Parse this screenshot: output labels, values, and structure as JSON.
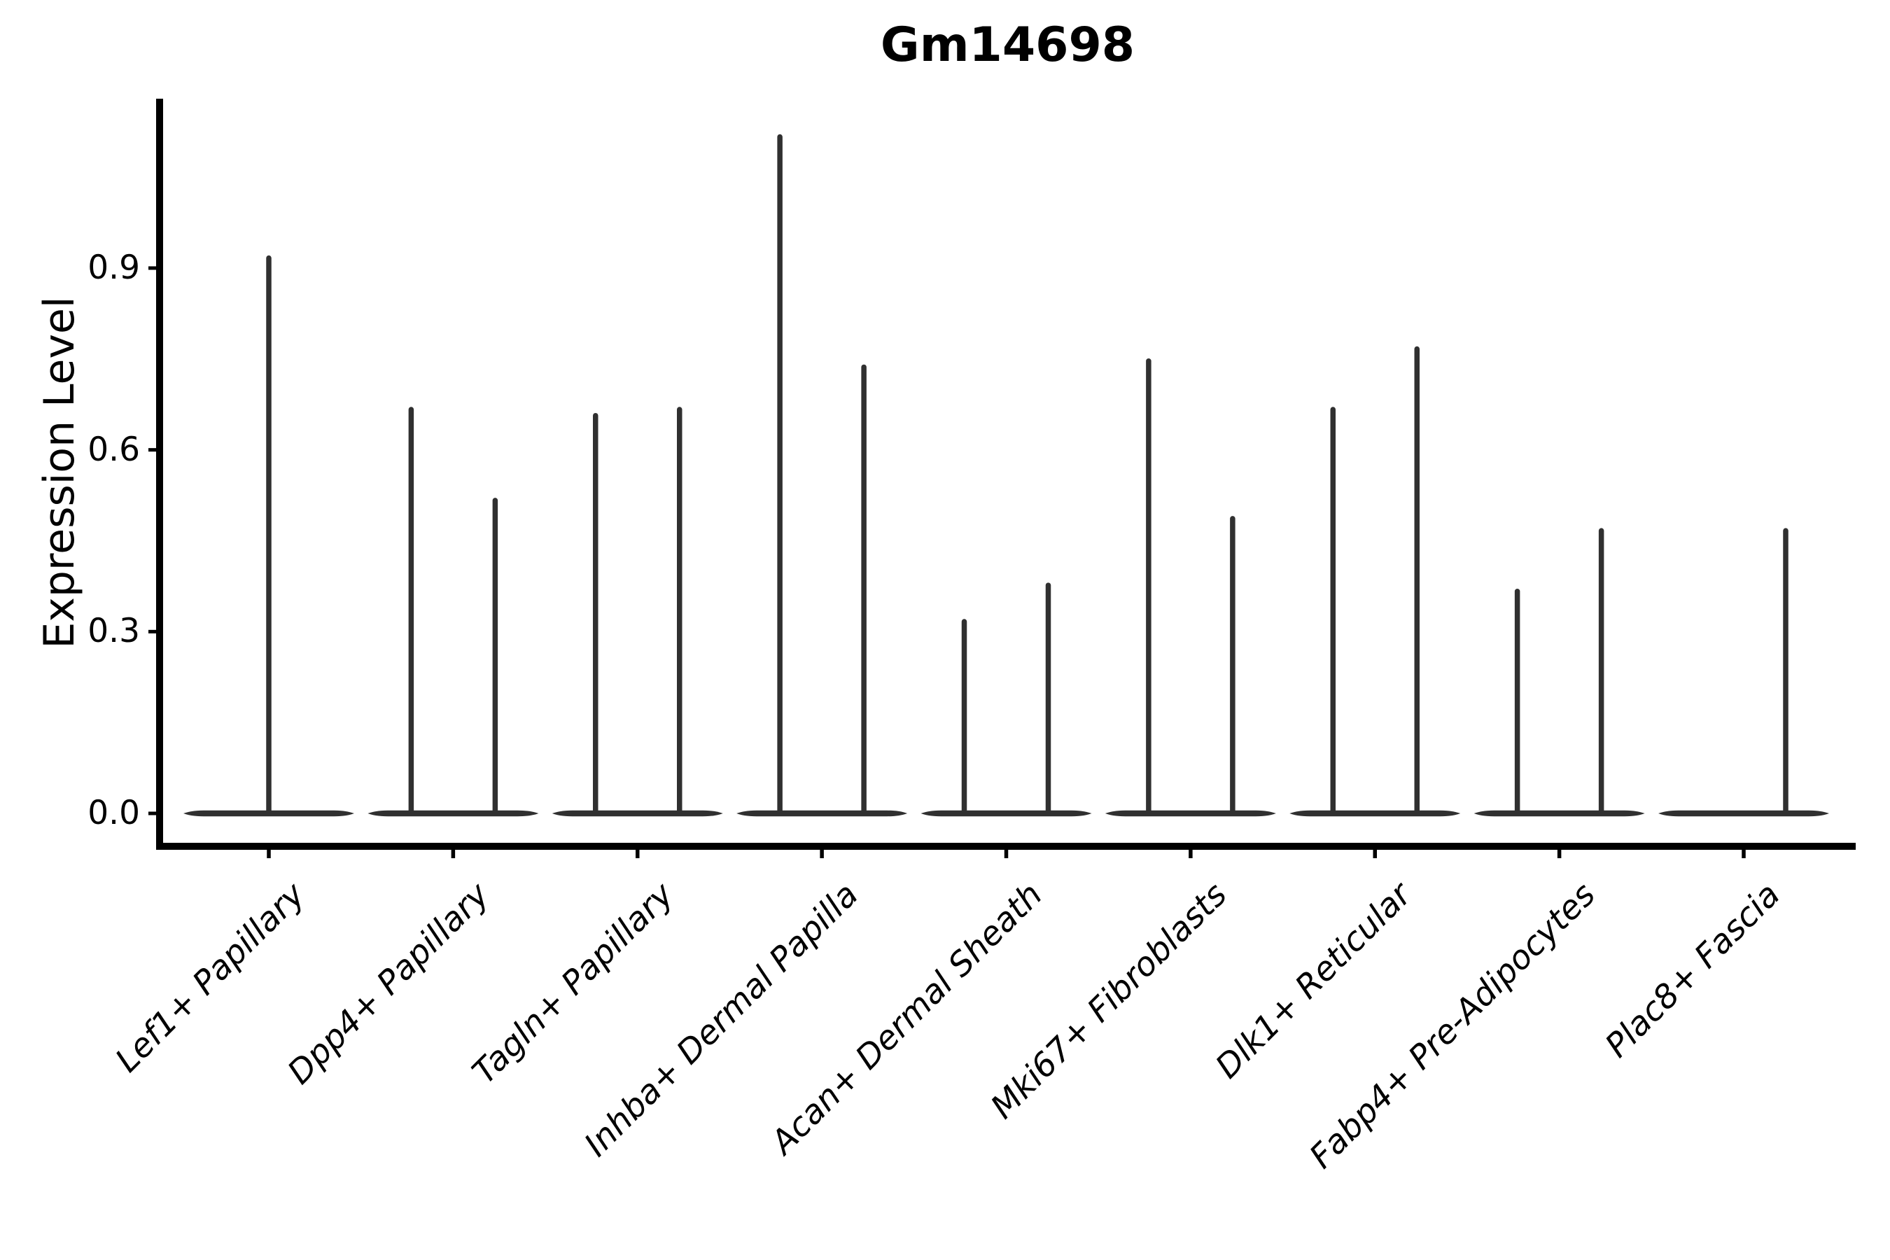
{
  "chart_data": {
    "type": "violin",
    "title": "Gm14698",
    "xlabel": "",
    "ylabel": "Expression Level",
    "y_ticks": [
      0.0,
      0.3,
      0.6,
      0.9
    ],
    "y_tick_labels": [
      "0.0",
      "0.3",
      "0.6",
      "0.9"
    ],
    "ylim": [
      -0.05,
      1.18
    ],
    "grid": false,
    "legend": "none",
    "categories": [
      "Lef1+ Papillary",
      "Dpp4+ Papillary",
      "Tagln+ Papillary",
      "Inhba+ Dermal Papilla",
      "Acan+ Dermal Sheath",
      "Mki67+ Fibroblasts",
      "Dlk1+ Reticular",
      "Fabp4+ Pre-Adipocytes",
      "Plac8+ Fascia"
    ],
    "violins": [
      {
        "category": "Lef1+ Papillary",
        "spikes": [
          {
            "position": "center",
            "max_expression": 0.92
          }
        ]
      },
      {
        "category": "Dpp4+ Papillary",
        "spikes": [
          {
            "position": "left",
            "max_expression": 0.67
          },
          {
            "position": "right",
            "max_expression": 0.52
          }
        ]
      },
      {
        "category": "Tagln+ Papillary",
        "spikes": [
          {
            "position": "left",
            "max_expression": 0.66
          },
          {
            "position": "right",
            "max_expression": 0.67
          }
        ]
      },
      {
        "category": "Inhba+ Dermal Papilla",
        "spikes": [
          {
            "position": "left",
            "max_expression": 1.12
          },
          {
            "position": "right",
            "max_expression": 0.74
          }
        ]
      },
      {
        "category": "Acan+ Dermal Sheath",
        "spikes": [
          {
            "position": "left",
            "max_expression": 0.32
          },
          {
            "position": "right",
            "max_expression": 0.38
          }
        ]
      },
      {
        "category": "Mki67+ Fibroblasts",
        "spikes": [
          {
            "position": "left",
            "max_expression": 0.75
          },
          {
            "position": "right",
            "max_expression": 0.49
          }
        ]
      },
      {
        "category": "Dlk1+ Reticular",
        "spikes": [
          {
            "position": "left",
            "max_expression": 0.67
          },
          {
            "position": "right",
            "max_expression": 0.77
          }
        ]
      },
      {
        "category": "Fabp4+ Pre-Adipocytes",
        "spikes": [
          {
            "position": "left",
            "max_expression": 0.37
          },
          {
            "position": "right",
            "max_expression": 0.47
          }
        ]
      },
      {
        "category": "Plac8+ Fascia",
        "spikes": [
          {
            "position": "right",
            "max_expression": 0.47
          }
        ]
      }
    ],
    "colors": {
      "violin": "#303030",
      "axis": "#000000",
      "text": "#000000",
      "background": "#ffffff"
    }
  }
}
